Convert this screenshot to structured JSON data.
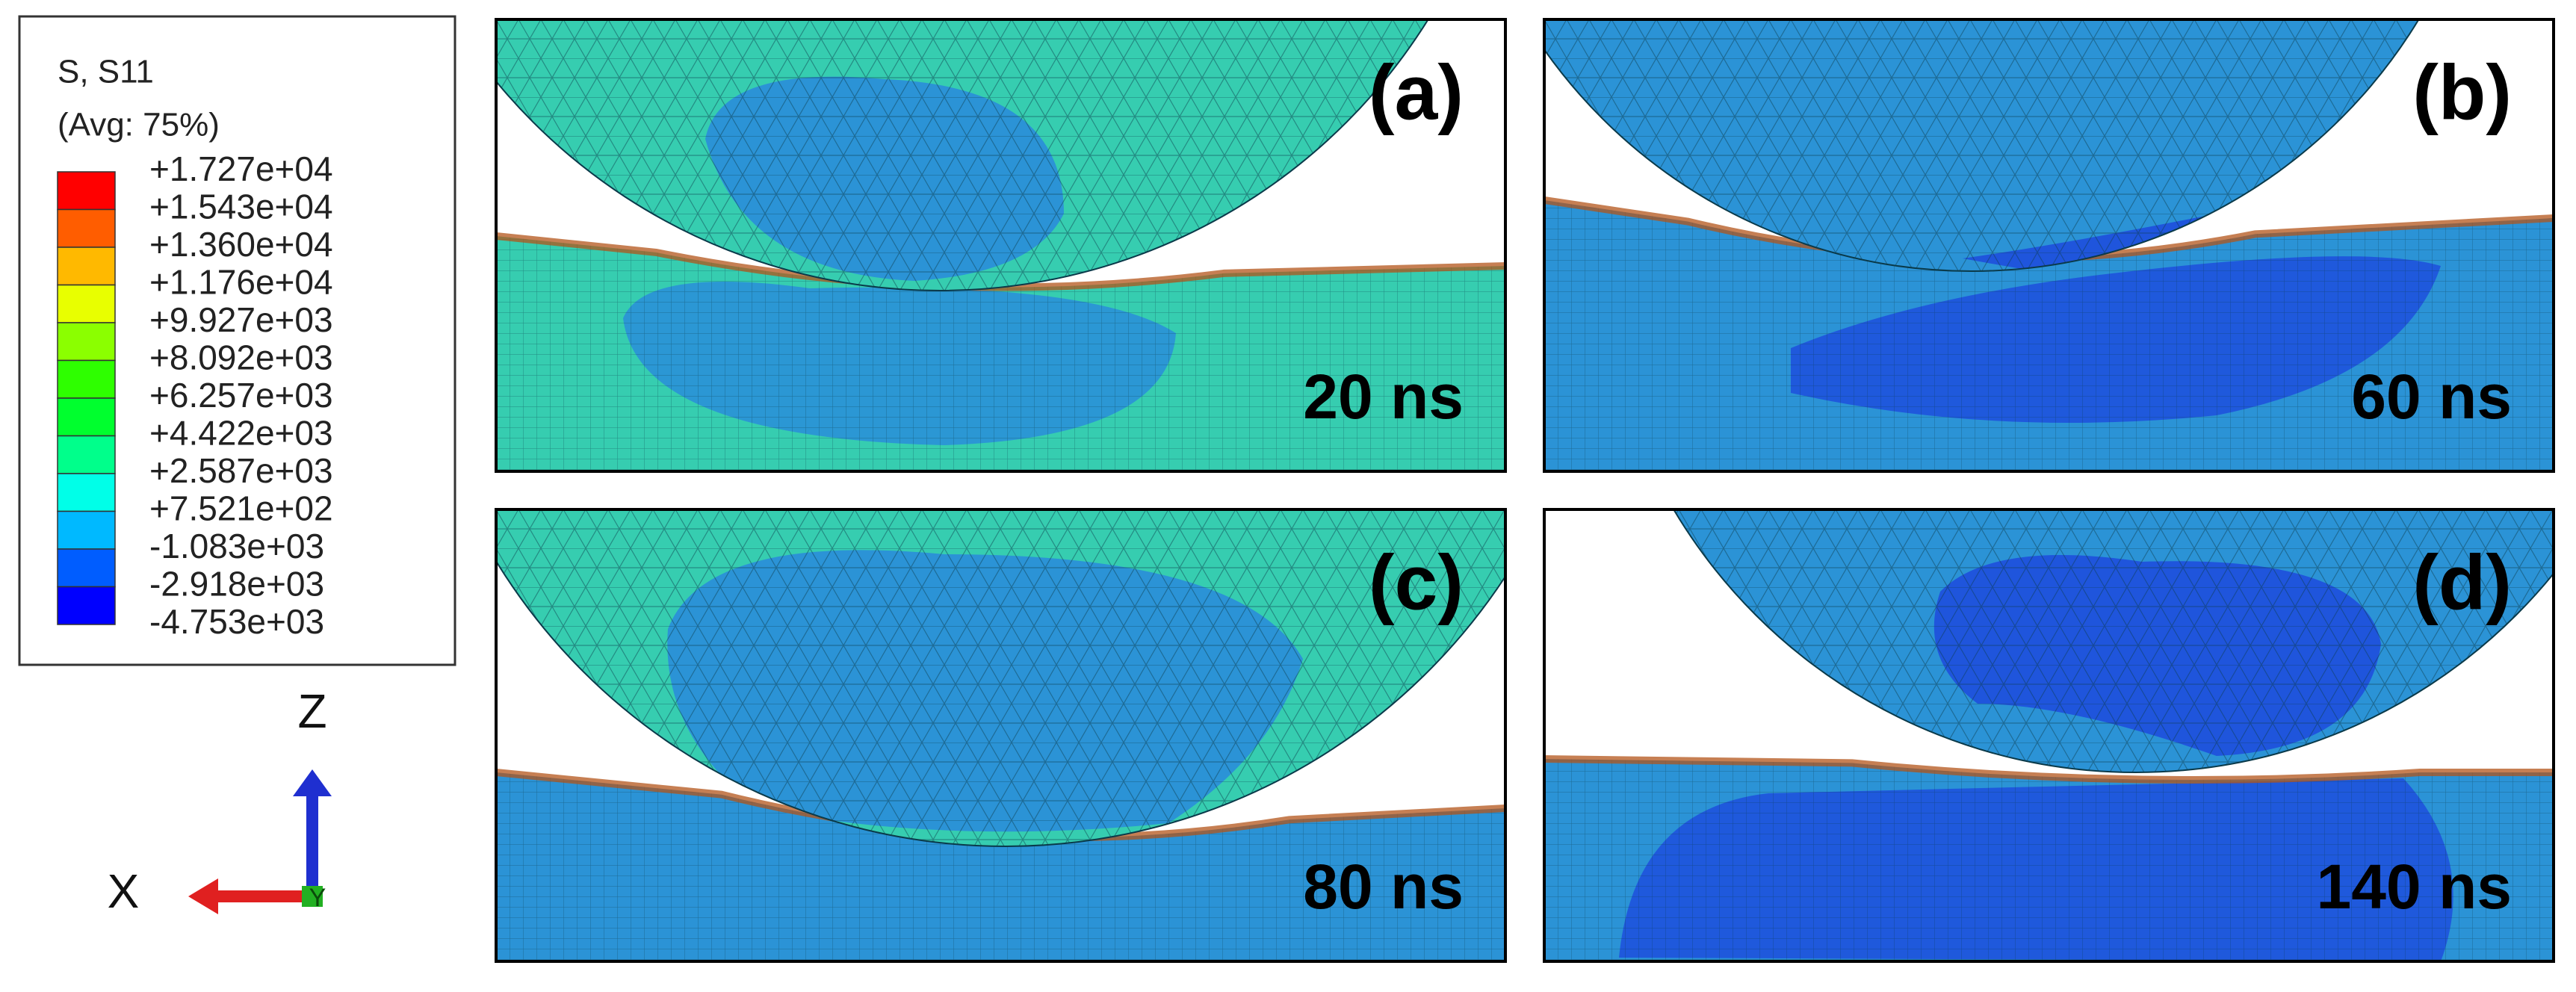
{
  "legend": {
    "title": "S, S11",
    "subtitle": "(Avg: 75%)",
    "labels": [
      "+1.727e+04",
      "+1.543e+04",
      "+1.360e+04",
      "+1.176e+04",
      "+9.927e+03",
      "+8.092e+03",
      "+6.257e+03",
      "+4.422e+03",
      "+2.587e+03",
      "+7.521e+02",
      "-1.083e+03",
      "-2.918e+03",
      "-4.753e+03"
    ],
    "colors": [
      "#ff0000",
      "#ff5d00",
      "#ffb900",
      "#e8ff00",
      "#8bff00",
      "#2eff00",
      "#00ff2e",
      "#00ff8b",
      "#00ffe8",
      "#00b9ff",
      "#005dff",
      "#0000ff"
    ]
  },
  "panels": [
    {
      "label": "(a)",
      "time": "20 ns"
    },
    {
      "label": "(b)",
      "time": "60 ns"
    },
    {
      "label": "(c)",
      "time": "80 ns"
    },
    {
      "label": "(d)",
      "time": "140 ns"
    }
  ],
  "triad": {
    "z": "Z",
    "x": "X",
    "y": "Y"
  }
}
